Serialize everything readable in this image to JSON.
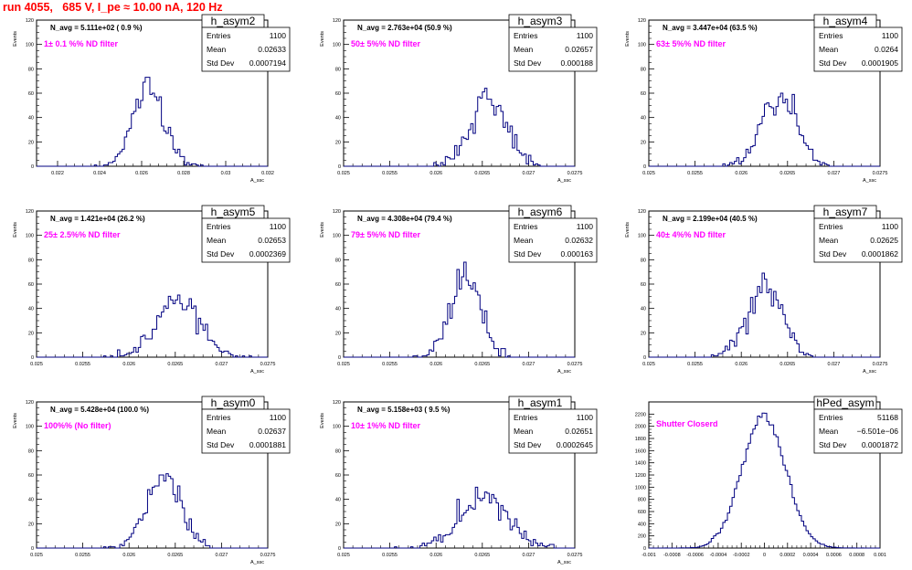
{
  "page_title": "run 4055,   685 V, I_pe ≈ 10.00 nA, 120 Hz",
  "colors": {
    "title": "#ff0000",
    "histogram": "#000080",
    "annotation": "#ff00ff",
    "text": "#000000"
  },
  "stats_labels": {
    "entries": "Entries",
    "mean": "Mean",
    "std": "Std Dev"
  },
  "chart_data": [
    {
      "type": "histogram",
      "title": "h_asym2",
      "xlabel": "A_ssc",
      "ylabel": "Events",
      "xlim": [
        0.021,
        0.032
      ],
      "ylim": [
        0,
        120
      ],
      "xticks": [
        "0.022",
        "0.024",
        "0.026",
        "0.028",
        "0.03",
        "0.032"
      ],
      "xtick_values": [
        0.022,
        0.024,
        0.026,
        0.028,
        0.03,
        0.032
      ],
      "yticks": [
        "0",
        "20",
        "40",
        "60",
        "80",
        "100",
        "120"
      ],
      "nbins": 100,
      "mean": 0.02633,
      "std": 0.0007194,
      "entries": 1100,
      "seed": 11,
      "stats": {
        "entries": "1100",
        "mean": "0.02633",
        "std": "0.0007194"
      },
      "navg": "N_avg = 5.111e+02 ( 0.9 %)",
      "filter": "1± 0.1 %% ND filter"
    },
    {
      "type": "histogram",
      "title": "h_asym3",
      "xlabel": "A_ssc",
      "ylabel": "Events",
      "xlim": [
        0.025,
        0.0275
      ],
      "ylim": [
        0,
        120
      ],
      "xticks": [
        "0.025",
        "0.0255",
        "0.026",
        "0.0265",
        "0.027",
        "0.0275"
      ],
      "xtick_values": [
        0.025,
        0.0255,
        0.026,
        0.0265,
        0.027,
        0.0275
      ],
      "yticks": [
        "0",
        "20",
        "40",
        "60",
        "80",
        "100",
        "120"
      ],
      "nbins": 100,
      "mean": 0.02657,
      "std": 0.000188,
      "entries": 1100,
      "seed": 12,
      "stats": {
        "entries": "1100",
        "mean": "0.02657",
        "std": "0.000188"
      },
      "navg": "N_avg = 2.763e+04 (50.9 %)",
      "filter": "50± 5%% ND filter"
    },
    {
      "type": "histogram",
      "title": "h_asym4",
      "xlabel": "A_ssc",
      "ylabel": "Events",
      "xlim": [
        0.025,
        0.0275
      ],
      "ylim": [
        0,
        120
      ],
      "xticks": [
        "0.025",
        "0.0255",
        "0.026",
        "0.0265",
        "0.027",
        "0.0275"
      ],
      "xtick_values": [
        0.025,
        0.0255,
        0.026,
        0.0265,
        0.027,
        0.0275
      ],
      "yticks": [
        "0",
        "20",
        "40",
        "60",
        "80",
        "100",
        "120"
      ],
      "nbins": 100,
      "mean": 0.0264,
      "std": 0.0001905,
      "entries": 1100,
      "seed": 13,
      "stats": {
        "entries": "1100",
        "mean": "0.0264",
        "std": "0.0001905"
      },
      "navg": "N_avg = 3.447e+04 (63.5 %)",
      "filter": "63± 5%% ND filter"
    },
    {
      "type": "histogram",
      "title": "h_asym5",
      "xlabel": "A_ssc",
      "ylabel": "Events",
      "xlim": [
        0.025,
        0.0275
      ],
      "ylim": [
        0,
        120
      ],
      "xticks": [
        "0.025",
        "0.0255",
        "0.026",
        "0.0265",
        "0.027",
        "0.0275"
      ],
      "xtick_values": [
        0.025,
        0.0255,
        0.026,
        0.0265,
        0.027,
        0.0275
      ],
      "yticks": [
        "0",
        "20",
        "40",
        "60",
        "80",
        "100",
        "120"
      ],
      "nbins": 100,
      "mean": 0.02653,
      "std": 0.0002369,
      "entries": 1100,
      "seed": 14,
      "stats": {
        "entries": "1100",
        "mean": "0.02653",
        "std": "0.0002369"
      },
      "navg": "N_avg = 1.421e+04 (26.2 %)",
      "filter": "25± 2.5%% ND filter"
    },
    {
      "type": "histogram",
      "title": "h_asym6",
      "xlabel": "A_ssc",
      "ylabel": "Events",
      "xlim": [
        0.025,
        0.0275
      ],
      "ylim": [
        0,
        120
      ],
      "xticks": [
        "0.025",
        "0.0255",
        "0.026",
        "0.0265",
        "0.027",
        "0.0275"
      ],
      "xtick_values": [
        0.025,
        0.0255,
        0.026,
        0.0265,
        0.027,
        0.0275
      ],
      "yticks": [
        "0",
        "20",
        "40",
        "60",
        "80",
        "100",
        "120"
      ],
      "nbins": 100,
      "mean": 0.02632,
      "std": 0.000163,
      "entries": 1100,
      "seed": 15,
      "stats": {
        "entries": "1100",
        "mean": "0.02632",
        "std": "0.000163"
      },
      "navg": "N_avg = 4.308e+04 (79.4 %)",
      "filter": "79± 5%% ND filter"
    },
    {
      "type": "histogram",
      "title": "h_asym7",
      "xlabel": "A_ssc",
      "ylabel": "Events",
      "xlim": [
        0.025,
        0.0275
      ],
      "ylim": [
        0,
        120
      ],
      "xticks": [
        "0.025",
        "0.0255",
        "0.026",
        "0.0265",
        "0.027",
        "0.0275"
      ],
      "xtick_values": [
        0.025,
        0.0255,
        0.026,
        0.0265,
        0.027,
        0.0275
      ],
      "yticks": [
        "0",
        "20",
        "40",
        "60",
        "80",
        "100",
        "120"
      ],
      "nbins": 100,
      "mean": 0.02625,
      "std": 0.0001862,
      "entries": 1100,
      "seed": 16,
      "stats": {
        "entries": "1100",
        "mean": "0.02625",
        "std": "0.0001862"
      },
      "navg": "N_avg = 2.199e+04 (40.5 %)",
      "filter": "40± 4%% ND filter"
    },
    {
      "type": "histogram",
      "title": "h_asym0",
      "xlabel": "A_ssc",
      "ylabel": "Events",
      "xlim": [
        0.025,
        0.0275
      ],
      "ylim": [
        0,
        120
      ],
      "xticks": [
        "0.025",
        "0.0255",
        "0.026",
        "0.0265",
        "0.027",
        "0.0275"
      ],
      "xtick_values": [
        0.025,
        0.0255,
        0.026,
        0.0265,
        0.027,
        0.0275
      ],
      "yticks": [
        "0",
        "20",
        "40",
        "60",
        "80",
        "100",
        "120"
      ],
      "nbins": 100,
      "mean": 0.02637,
      "std": 0.0001881,
      "entries": 1100,
      "seed": 17,
      "stats": {
        "entries": "1100",
        "mean": "0.02637",
        "std": "0.0001881"
      },
      "navg": "N_avg = 5.428e+04 (100.0 %)",
      "filter": "100%% (No filter)"
    },
    {
      "type": "histogram",
      "title": "h_asym1",
      "xlabel": "A_ssc",
      "ylabel": "Events",
      "xlim": [
        0.025,
        0.0275
      ],
      "ylim": [
        0,
        120
      ],
      "xticks": [
        "0.025",
        "0.0255",
        "0.026",
        "0.0265",
        "0.027",
        "0.0275"
      ],
      "xtick_values": [
        0.025,
        0.0255,
        0.026,
        0.0265,
        0.027,
        0.0275
      ],
      "yticks": [
        "0",
        "20",
        "40",
        "60",
        "80",
        "100",
        "120"
      ],
      "nbins": 100,
      "mean": 0.02651,
      "std": 0.0002645,
      "entries": 1100,
      "seed": 18,
      "stats": {
        "entries": "1100",
        "mean": "0.02651",
        "std": "0.0002645"
      },
      "navg": "N_avg = 5.158e+03 ( 9.5 %)",
      "filter": "10± 1%% ND filter"
    },
    {
      "type": "histogram",
      "title": "hPed_asym",
      "xlabel": "",
      "ylabel": "",
      "xlim": [
        -0.001,
        0.001
      ],
      "ylim": [
        0,
        2400
      ],
      "xticks": [
        "-0.001",
        "-0.0008",
        "-0.0006",
        "-0.0004",
        "-0.0002",
        "0",
        "0.0002",
        "0.0004",
        "0.0006",
        "0.0008",
        "0.001"
      ],
      "xtick_values": [
        -0.001,
        -0.0008,
        -0.0006,
        -0.0004,
        -0.0002,
        0,
        0.0002,
        0.0004,
        0.0006,
        0.0008,
        0.001
      ],
      "yticks": [
        "0",
        "200",
        "400",
        "600",
        "800",
        "1000",
        "1200",
        "1400",
        "1600",
        "1800",
        "2000",
        "2200"
      ],
      "nbins": 100,
      "mean": -6.501e-06,
      "std": 0.0001872,
      "entries": 51168,
      "seed": 19,
      "stats": {
        "entries": "51168",
        "mean": "−6.501e−06",
        "std": "0.0001872"
      },
      "navg": "",
      "filter": "Shutter Closerd"
    }
  ]
}
